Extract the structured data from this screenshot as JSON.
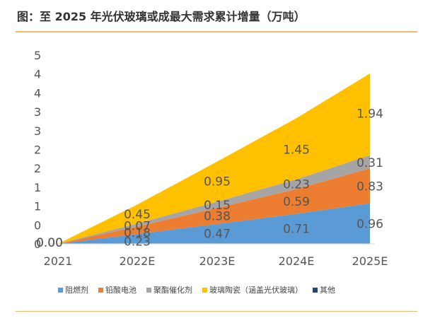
{
  "title": "图：至 2025 年光伏玻璃或成最大需求累计增量（万吨）",
  "chart_data": {
    "type": "area",
    "stacked": true,
    "categories": [
      "2021",
      "2022E",
      "2023E",
      "2024E",
      "2025E"
    ],
    "yticks": [
      "5",
      "4",
      "4",
      "3",
      "3",
      "2",
      "2",
      "1",
      "1",
      "0",
      "0"
    ],
    "ylim": [
      0,
      4.5
    ],
    "series": [
      {
        "name": "阻燃剂",
        "color": "#5b9bd5",
        "values": [
          0.0,
          0.23,
          0.47,
          0.71,
          0.96
        ]
      },
      {
        "name": "铅酸电池",
        "color": "#ed7d31",
        "values": [
          0.0,
          0.18,
          0.38,
          0.59,
          0.83
        ]
      },
      {
        "name": "聚酯催化剂",
        "color": "#a5a5a5",
        "values": [
          0.0,
          0.07,
          0.15,
          0.23,
          0.31
        ]
      },
      {
        "name": "玻璃陶瓷（涵盖光伏玻璃）",
        "color": "#ffc000",
        "values": [
          0.0,
          0.45,
          0.95,
          1.45,
          1.94
        ]
      },
      {
        "name": "其他",
        "color": "#264478",
        "values": [
          0,
          0,
          0,
          0,
          0
        ]
      }
    ],
    "data_labels": [
      {
        "text": "0.00",
        "cat": 0,
        "y": 0.03
      },
      {
        "text": "0.00",
        "cat": 0,
        "y": 0.03
      },
      {
        "text": "0.23",
        "cat": 1,
        "y": 0.06
      },
      {
        "text": "0.18",
        "cat": 1,
        "y": 0.27
      },
      {
        "text": "0.07",
        "cat": 1,
        "y": 0.43
      },
      {
        "text": "0.45",
        "cat": 1,
        "y": 0.7
      },
      {
        "text": "0.47",
        "cat": 2,
        "y": 0.24
      },
      {
        "text": "0.38",
        "cat": 2,
        "y": 0.66
      },
      {
        "text": "0.15",
        "cat": 2,
        "y": 0.92
      },
      {
        "text": "0.95",
        "cat": 2,
        "y": 1.48
      },
      {
        "text": "0.71",
        "cat": 3,
        "y": 0.36
      },
      {
        "text": "0.59",
        "cat": 3,
        "y": 1.01
      },
      {
        "text": "0.23",
        "cat": 3,
        "y": 1.42
      },
      {
        "text": "1.45",
        "cat": 3,
        "y": 2.24
      },
      {
        "text": "0.96",
        "cat": 4,
        "y": 0.48
      },
      {
        "text": "0.83",
        "cat": 4,
        "y": 1.37
      },
      {
        "text": "0.31",
        "cat": 4,
        "y": 1.93
      },
      {
        "text": "1.94",
        "cat": 4,
        "y": 3.09
      }
    ]
  }
}
